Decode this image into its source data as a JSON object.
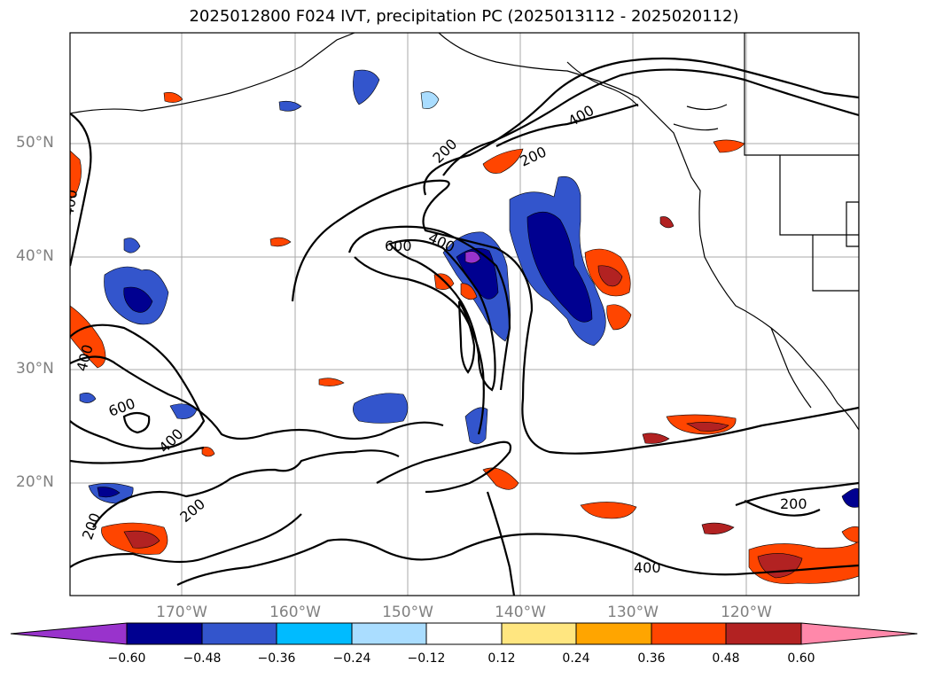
{
  "title": "2025012800 F024 IVT, precipitation PC (2025013112 - 2025020112)",
  "map": {
    "lat_labels": [
      "50°N",
      "40°N",
      "30°N",
      "20°N"
    ],
    "lon_labels": [
      "170°W",
      "160°W",
      "150°W",
      "140°W",
      "130°W",
      "120°W"
    ],
    "contour_labels": [
      "400",
      "200",
      "200",
      "400",
      "600",
      "400",
      "400",
      "600",
      "400",
      "200",
      "200",
      "200",
      "400"
    ],
    "ivt_contour_levels": [
      200,
      400,
      600
    ]
  },
  "colorbar": {
    "ticks": [
      "−0.60",
      "−0.48",
      "−0.36",
      "−0.24",
      "−0.12",
      "0.12",
      "0.24",
      "0.36",
      "0.48",
      "0.60"
    ],
    "colors": [
      "#9933cc",
      "#000090",
      "#3355cc",
      "#00bbff",
      "#aaddff",
      "#ffffff",
      "#ffe680",
      "#ffa500",
      "#ff4500",
      "#b22222",
      "#ff88aa"
    ]
  }
}
